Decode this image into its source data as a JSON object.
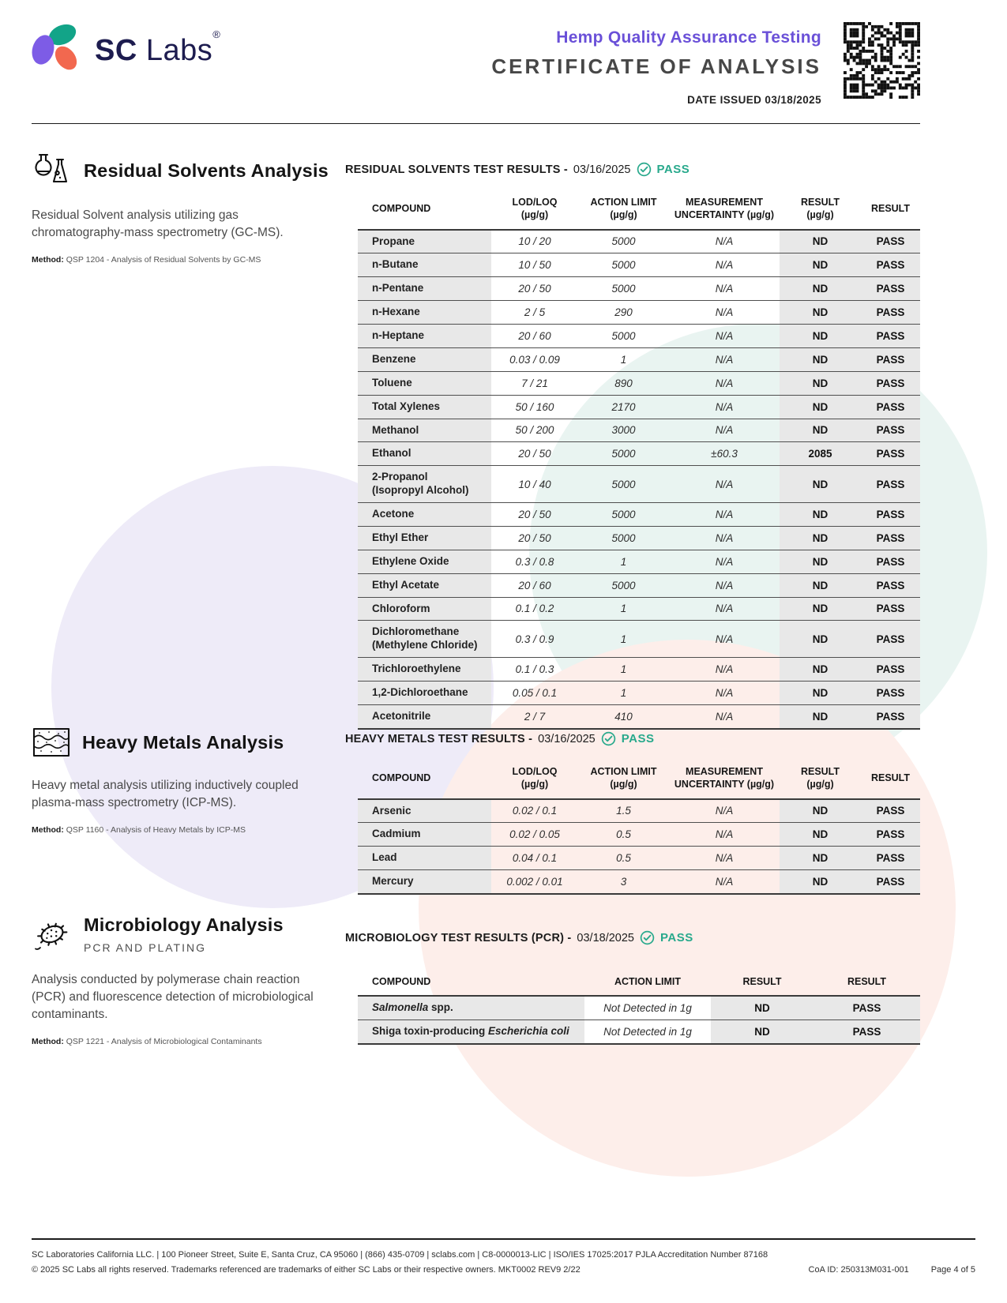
{
  "colors": {
    "accent_purple": "#6a50d8",
    "accent_teal": "#28a98c",
    "logo_navy": "#1d1c4f",
    "logo_purple": "#7d5ce6",
    "logo_teal": "#12a488",
    "logo_orange": "#f2684f",
    "row_gray": "#e8e8e8"
  },
  "header": {
    "brand_bold": "SC",
    "brand_light": "Labs",
    "brand_registered": "®",
    "program_title": "Hemp Quality Assurance Testing",
    "document_title": "CERTIFICATE OF ANALYSIS",
    "date_issued": "DATE ISSUED 03/18/2025"
  },
  "solvents": {
    "title": "Residual Solvents Analysis",
    "description": "Residual Solvent analysis utilizing gas chromatography-mass spectrometry (GC-MS).",
    "method_label": "Method:",
    "method": "QSP 1204 - Analysis of Residual Solvents by GC-MS",
    "results_heading": "RESIDUAL SOLVENTS TEST RESULTS -",
    "results_date": "03/16/2025",
    "status": "PASS",
    "table": {
      "headers": {
        "compound": "COMPOUND",
        "lod_loq": "LOD/LOQ\n(µg/g)",
        "action_limit": "ACTION LIMIT\n(µg/g)",
        "uncertainty": "MEASUREMENT\nUNCERTAINTY (µg/g)",
        "result": "RESULT\n(µg/g)",
        "status": "RESULT"
      },
      "rows": [
        {
          "compound": "Propane",
          "lod_loq": "10 / 20",
          "action_limit": "5000",
          "uncertainty": "N/A",
          "result": "ND",
          "status": "PASS"
        },
        {
          "compound": "n-Butane",
          "lod_loq": "10 / 50",
          "action_limit": "5000",
          "uncertainty": "N/A",
          "result": "ND",
          "status": "PASS"
        },
        {
          "compound": "n-Pentane",
          "lod_loq": "20 / 50",
          "action_limit": "5000",
          "uncertainty": "N/A",
          "result": "ND",
          "status": "PASS"
        },
        {
          "compound": "n-Hexane",
          "lod_loq": "2 / 5",
          "action_limit": "290",
          "uncertainty": "N/A",
          "result": "ND",
          "status": "PASS"
        },
        {
          "compound": "n-Heptane",
          "lod_loq": "20 / 60",
          "action_limit": "5000",
          "uncertainty": "N/A",
          "result": "ND",
          "status": "PASS"
        },
        {
          "compound": "Benzene",
          "lod_loq": "0.03 / 0.09",
          "action_limit": "1",
          "uncertainty": "N/A",
          "result": "ND",
          "status": "PASS"
        },
        {
          "compound": "Toluene",
          "lod_loq": "7 / 21",
          "action_limit": "890",
          "uncertainty": "N/A",
          "result": "ND",
          "status": "PASS"
        },
        {
          "compound": "Total Xylenes",
          "lod_loq": "50 / 160",
          "action_limit": "2170",
          "uncertainty": "N/A",
          "result": "ND",
          "status": "PASS"
        },
        {
          "compound": "Methanol",
          "lod_loq": "50 / 200",
          "action_limit": "3000",
          "uncertainty": "N/A",
          "result": "ND",
          "status": "PASS"
        },
        {
          "compound": "Ethanol",
          "lod_loq": "20 / 50",
          "action_limit": "5000",
          "uncertainty": "±60.3",
          "result": "2085",
          "status": "PASS"
        },
        {
          "compound": "2-Propanol\n(Isopropyl Alcohol)",
          "lod_loq": "10 / 40",
          "action_limit": "5000",
          "uncertainty": "N/A",
          "result": "ND",
          "status": "PASS"
        },
        {
          "compound": "Acetone",
          "lod_loq": "20 / 50",
          "action_limit": "5000",
          "uncertainty": "N/A",
          "result": "ND",
          "status": "PASS"
        },
        {
          "compound": "Ethyl Ether",
          "lod_loq": "20 / 50",
          "action_limit": "5000",
          "uncertainty": "N/A",
          "result": "ND",
          "status": "PASS"
        },
        {
          "compound": "Ethylene Oxide",
          "lod_loq": "0.3 / 0.8",
          "action_limit": "1",
          "uncertainty": "N/A",
          "result": "ND",
          "status": "PASS"
        },
        {
          "compound": "Ethyl Acetate",
          "lod_loq": "20 / 60",
          "action_limit": "5000",
          "uncertainty": "N/A",
          "result": "ND",
          "status": "PASS"
        },
        {
          "compound": "Chloroform",
          "lod_loq": "0.1 / 0.2",
          "action_limit": "1",
          "uncertainty": "N/A",
          "result": "ND",
          "status": "PASS"
        },
        {
          "compound": "Dichloromethane\n(Methylene Chloride)",
          "lod_loq": "0.3 / 0.9",
          "action_limit": "1",
          "uncertainty": "N/A",
          "result": "ND",
          "status": "PASS"
        },
        {
          "compound": "Trichloroethylene",
          "lod_loq": "0.1 / 0.3",
          "action_limit": "1",
          "uncertainty": "N/A",
          "result": "ND",
          "status": "PASS"
        },
        {
          "compound": "1,2-Dichloroethane",
          "lod_loq": "0.05 / 0.1",
          "action_limit": "1",
          "uncertainty": "N/A",
          "result": "ND",
          "status": "PASS"
        },
        {
          "compound": "Acetonitrile",
          "lod_loq": "2 / 7",
          "action_limit": "410",
          "uncertainty": "N/A",
          "result": "ND",
          "status": "PASS"
        }
      ]
    }
  },
  "metals": {
    "title": "Heavy Metals Analysis",
    "description": "Heavy metal analysis utilizing inductively coupled plasma-mass spectrometry (ICP-MS).",
    "method_label": "Method:",
    "method": "QSP 1160 - Analysis of Heavy Metals by ICP-MS",
    "results_heading": "HEAVY METALS TEST RESULTS -",
    "results_date": "03/16/2025",
    "status": "PASS",
    "table": {
      "headers": {
        "compound": "COMPOUND",
        "lod_loq": "LOD/LOQ\n(µg/g)",
        "action_limit": "ACTION LIMIT\n(µg/g)",
        "uncertainty": "MEASUREMENT\nUNCERTAINTY (µg/g)",
        "result": "RESULT\n(µg/g)",
        "status": "RESULT"
      },
      "rows": [
        {
          "compound": "Arsenic",
          "lod_loq": "0.02 / 0.1",
          "action_limit": "1.5",
          "uncertainty": "N/A",
          "result": "ND",
          "status": "PASS"
        },
        {
          "compound": "Cadmium",
          "lod_loq": "0.02 / 0.05",
          "action_limit": "0.5",
          "uncertainty": "N/A",
          "result": "ND",
          "status": "PASS"
        },
        {
          "compound": "Lead",
          "lod_loq": "0.04 / 0.1",
          "action_limit": "0.5",
          "uncertainty": "N/A",
          "result": "ND",
          "status": "PASS"
        },
        {
          "compound": "Mercury",
          "lod_loq": "0.002 / 0.01",
          "action_limit": "3",
          "uncertainty": "N/A",
          "result": "ND",
          "status": "PASS"
        }
      ]
    }
  },
  "micro": {
    "title": "Microbiology Analysis",
    "subtitle": "PCR AND PLATING",
    "description": "Analysis conducted by polymerase chain reaction (PCR) and fluorescence detection of microbiological contaminants.",
    "method_label": "Method:",
    "method": "QSP 1221 - Analysis of Microbiological Contaminants",
    "results_heading": "MICROBIOLOGY TEST RESULTS (PCR) -",
    "results_date": "03/18/2025",
    "status": "PASS",
    "table": {
      "headers": {
        "compound": "COMPOUND",
        "action_limit": "ACTION LIMIT",
        "result": "RESULT",
        "status": "RESULT"
      },
      "rows": [
        {
          "compound_prefix": "",
          "compound_italic": "Salmonella",
          "compound_suffix": " spp.",
          "action_limit": "Not Detected in 1g",
          "result": "ND",
          "status": "PASS"
        },
        {
          "compound_prefix": "Shiga toxin-producing ",
          "compound_italic": "Escherichia coli",
          "compound_suffix": "",
          "action_limit": "Not Detected in 1g",
          "result": "ND",
          "status": "PASS"
        }
      ]
    }
  },
  "footer": {
    "line1": "SC Laboratories California LLC. | 100 Pioneer Street, Suite E, Santa Cruz, CA 95060 | (866) 435-0709 | sclabs.com | C8-0000013-LIC | ISO/IES 17025:2017 PJLA Accreditation Number 87168",
    "line2_left": "© 2025 SC Labs all rights reserved. Trademarks referenced are trademarks of either SC Labs or their respective owners. MKT0002 REV9 2/22",
    "coa_id": "CoA ID: 250313M031-001",
    "page": "Page 4 of 5"
  }
}
